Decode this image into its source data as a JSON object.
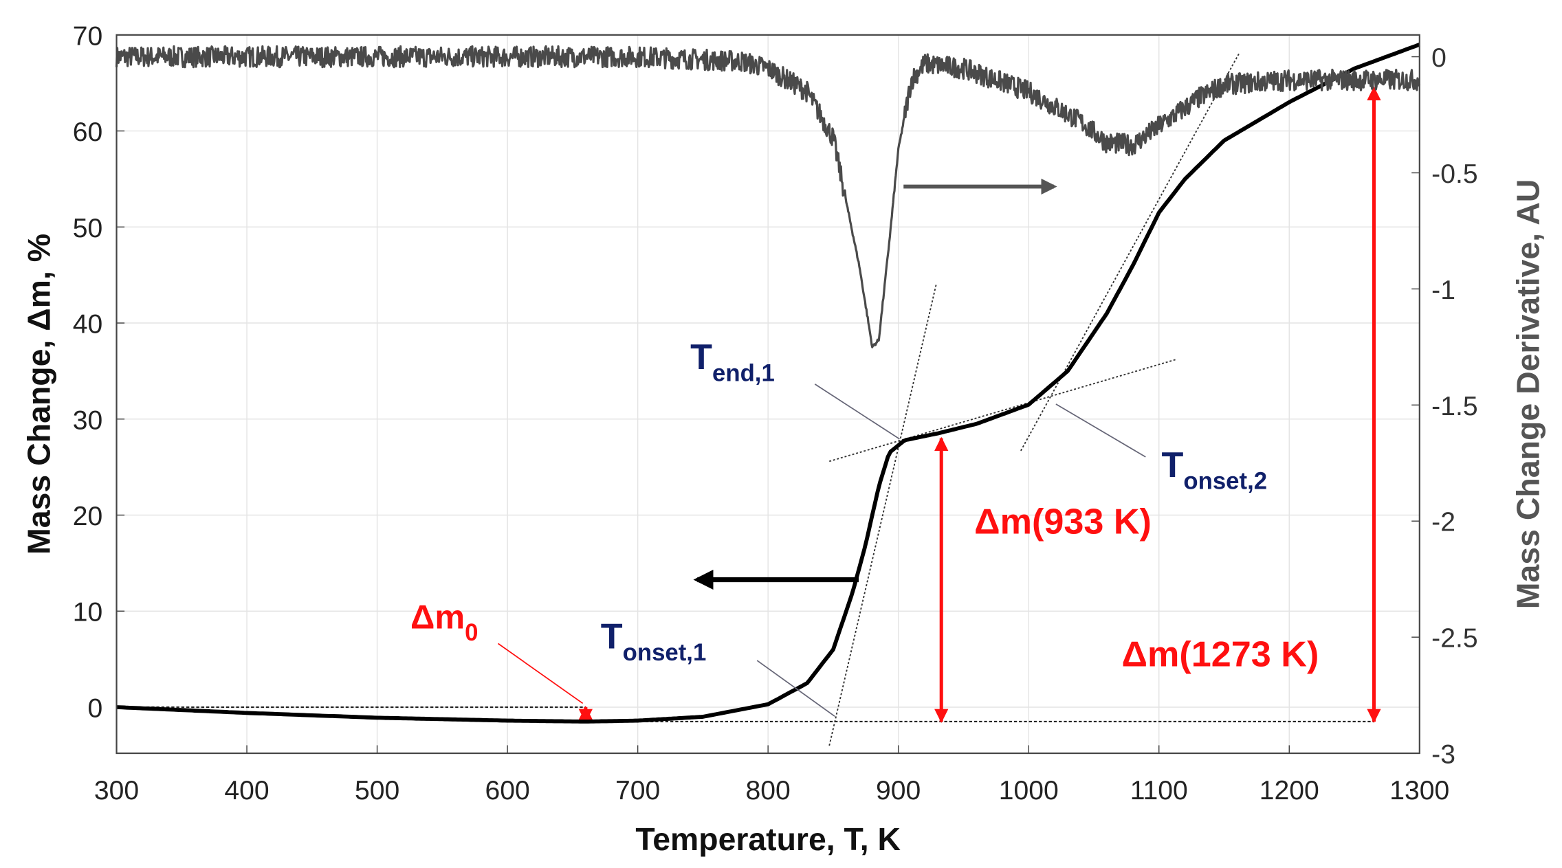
{
  "chart_data": {
    "type": "line",
    "title": "",
    "xlabel": "Temperature, T, K",
    "ylabel": "Mass Change, Δm, %",
    "ylabel_right": "Mass Change Derivative, AU",
    "xlim": [
      300,
      1300
    ],
    "ylim": [
      -4.8,
      70
    ],
    "ylim_right": [
      -3,
      0.094
    ],
    "grid": true,
    "x_ticks": [
      "300",
      "400",
      "500",
      "600",
      "700",
      "800",
      "900",
      "1000",
      "1100",
      "1200",
      "1300"
    ],
    "y_ticks": [
      "0",
      "10",
      "20",
      "30",
      "40",
      "50",
      "60",
      "70"
    ],
    "y_right_ticks": [
      "0",
      "-0.5",
      "-1",
      "-1.5",
      "-2",
      "-2.5",
      "-3"
    ],
    "series": [
      {
        "name": "Mass change",
        "axis": "left",
        "color": "#000000",
        "x": [
          300,
          400,
          500,
          600,
          660,
          700,
          750,
          800,
          830,
          850,
          865,
          875,
          885,
          893,
          905,
          930,
          960,
          1000,
          1030,
          1060,
          1080,
          1100,
          1120,
          1150,
          1200,
          1250,
          1300
        ],
        "y": [
          0,
          -0.6,
          -1.1,
          -1.4,
          -1.5,
          -1.4,
          -1.0,
          0.3,
          2.5,
          6,
          12,
          17,
          23,
          26.5,
          27.8,
          28.5,
          29.5,
          31.5,
          35,
          41,
          46,
          51.5,
          55,
          59,
          63,
          66.5,
          69
        ]
      },
      {
        "name": "Mass change derivative",
        "axis": "right",
        "color": "#4a4a4a",
        "x": [
          300,
          400,
          500,
          600,
          700,
          780,
          800,
          830,
          850,
          870,
          880,
          885,
          893,
          900,
          910,
          920,
          950,
          1000,
          1040,
          1060,
          1080,
          1100,
          1130,
          1150,
          1200,
          1300
        ],
        "y": [
          0,
          0,
          0,
          0,
          0,
          -0.02,
          -0.05,
          -0.15,
          -0.35,
          -0.9,
          -1.25,
          -1.22,
          -0.8,
          -0.4,
          -0.1,
          -0.03,
          -0.05,
          -0.15,
          -0.28,
          -0.37,
          -0.38,
          -0.3,
          -0.18,
          -0.12,
          -0.1,
          -0.1
        ]
      }
    ],
    "annotations": {
      "tangents": [
        {
          "x": [
            847,
            929
          ],
          "y": [
            -4,
            44
          ]
        },
        {
          "x": [
            847,
            1113
          ],
          "y": [
            25.6,
            36.2
          ]
        },
        {
          "x": [
            994,
            1162
          ],
          "y": [
            26.7,
            68.2
          ]
        }
      ],
      "baselines": [
        {
          "x": [
            300,
            660
          ],
          "y": [
            0,
            0
          ]
        },
        {
          "x": [
            660,
            1265
          ],
          "y": [
            -1.5,
            -1.5
          ]
        }
      ],
      "red_arrows": [
        {
          "x": 660,
          "y": [
            0,
            -1.5
          ]
        },
        {
          "x": 933,
          "y": [
            -1.5,
            28
          ]
        },
        {
          "x": 1265,
          "y": [
            -1.5,
            64.5
          ]
        }
      ],
      "labels": {
        "t_end_1": {
          "main": "T",
          "sub": "end,1"
        },
        "t_onset_2": {
          "main": "T",
          "sub": "onset,2"
        },
        "t_onset_1": {
          "main": "T",
          "sub": "onset,1"
        },
        "dm0": {
          "main": "Δm",
          "sub": "0"
        },
        "dm933": "Δm(933 K)",
        "dm1273": "Δm(1273 K)"
      }
    }
  }
}
